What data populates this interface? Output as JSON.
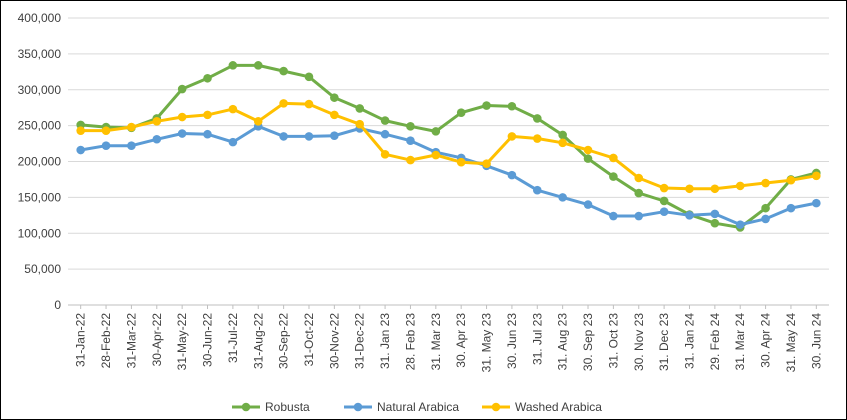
{
  "chart_data": {
    "type": "line",
    "title": "",
    "xlabel": "",
    "ylabel": "",
    "ylim": [
      0,
      400000
    ],
    "yticks": [
      "0",
      "50,000",
      "100,000",
      "150,000",
      "200,000",
      "250,000",
      "300,000",
      "350,000",
      "400,000"
    ],
    "grid": "horizontal",
    "legend_position": "bottom",
    "categories": [
      "31-Jan-22",
      "28-Feb-22",
      "31-Mar-22",
      "30-Apr-22",
      "31-May-22",
      "30-Jun-22",
      "31-Jul-22",
      "31-Aug-22",
      "30-Sep-22",
      "31-Oct-22",
      "30-Nov-22",
      "31-Dec-22",
      "31. Jan 23",
      "28. Feb 23",
      "31. Mar 23",
      "30. Apr 23",
      "31. May 23",
      "30. Jun 23",
      "31. Jul 23",
      "31. Aug 23",
      "30. Sep 23",
      "31. Oct 23",
      "30. Nov 23",
      "31. Dec 23",
      "31. Jan 24",
      "29. Feb 24",
      "31. Mar 24",
      "30. Apr 24",
      "31. May 24",
      "30. Jun 24"
    ],
    "series": [
      {
        "name": "Robusta",
        "color": "#70ad47",
        "values": [
          251000,
          248000,
          247000,
          260000,
          301000,
          316000,
          334000,
          334000,
          326000,
          318000,
          289000,
          274000,
          257000,
          249000,
          242000,
          268000,
          278000,
          277000,
          260000,
          237000,
          204000,
          179000,
          156000,
          145000,
          126000,
          114000,
          108000,
          135000,
          175000,
          184000
        ]
      },
      {
        "name": "Natural Arabica",
        "color": "#5b9bd5",
        "values": [
          216000,
          222000,
          222000,
          231000,
          239000,
          238000,
          227000,
          249000,
          235000,
          235000,
          236000,
          246000,
          238000,
          229000,
          213000,
          205000,
          194000,
          181000,
          160000,
          150000,
          140000,
          124000,
          124000,
          130000,
          125000,
          127000,
          112000,
          120000,
          135000,
          142000
        ]
      },
      {
        "name": "Washed Arabica",
        "color": "#ffc000",
        "values": [
          243000,
          243000,
          248000,
          256000,
          262000,
          265000,
          273000,
          256000,
          281000,
          280000,
          265000,
          252000,
          210000,
          202000,
          209000,
          199000,
          197000,
          235000,
          232000,
          226000,
          216000,
          205000,
          177000,
          163000,
          162000,
          162000,
          166000,
          170000,
          174000,
          180000
        ]
      }
    ]
  }
}
